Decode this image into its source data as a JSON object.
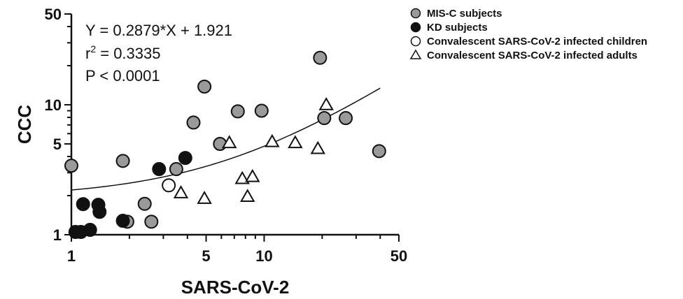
{
  "chart_data": {
    "type": "scatter",
    "xlabel": "SARS-CoV-2",
    "ylabel": "CCC",
    "x_scale": "log",
    "y_scale": "log",
    "xlim": [
      1,
      50
    ],
    "ylim": [
      1,
      50
    ],
    "x_ticks": [
      1,
      5,
      10,
      50
    ],
    "y_ticks": [
      1,
      5,
      10,
      50
    ],
    "x_tick_labels": [
      "1",
      "5",
      "10",
      "50"
    ],
    "y_tick_labels": [
      "1",
      "5",
      "10",
      "50"
    ],
    "grid": false,
    "legend_position": "top-right",
    "annotations": {
      "equation": "Y = 0.2879*X + 1.921",
      "r2_prefix": "r",
      "r2_sup": "2",
      "r2_value": " = 0.3335",
      "p_value": "P < 0.0001"
    },
    "fit": {
      "slope": 0.2879,
      "intercept": 1.921,
      "x_range": [
        1,
        40
      ]
    },
    "series": [
      {
        "name": "MIS-C subjects",
        "marker": "circle",
        "fill": "#9a9a9a",
        "points": [
          {
            "x": 1.0,
            "y": 3.4
          },
          {
            "x": 1.85,
            "y": 3.7
          },
          {
            "x": 1.95,
            "y": 1.26
          },
          {
            "x": 2.4,
            "y": 1.73
          },
          {
            "x": 2.6,
            "y": 1.26
          },
          {
            "x": 3.5,
            "y": 3.2
          },
          {
            "x": 4.3,
            "y": 7.3
          },
          {
            "x": 4.9,
            "y": 13.8
          },
          {
            "x": 5.9,
            "y": 5.0
          },
          {
            "x": 7.3,
            "y": 8.9
          },
          {
            "x": 9.7,
            "y": 9.0
          },
          {
            "x": 19.5,
            "y": 23.0
          },
          {
            "x": 20.5,
            "y": 7.9
          },
          {
            "x": 26.5,
            "y": 7.9
          },
          {
            "x": 39.5,
            "y": 4.4
          }
        ]
      },
      {
        "name": "KD subjects",
        "marker": "circle",
        "fill": "#111111",
        "points": [
          {
            "x": 1.05,
            "y": 1.05
          },
          {
            "x": 1.12,
            "y": 1.05
          },
          {
            "x": 1.15,
            "y": 1.72
          },
          {
            "x": 1.25,
            "y": 1.09
          },
          {
            "x": 1.38,
            "y": 1.7
          },
          {
            "x": 1.4,
            "y": 1.5
          },
          {
            "x": 1.85,
            "y": 1.28
          },
          {
            "x": 2.85,
            "y": 3.2
          },
          {
            "x": 3.9,
            "y": 3.9
          }
        ]
      },
      {
        "name": "Convalescent SARS-CoV-2 infected children",
        "marker": "circle-open",
        "fill": "#ffffff",
        "points": [
          {
            "x": 3.2,
            "y": 2.4
          }
        ]
      },
      {
        "name": "Convalescent SARS-CoV-2 infected adults",
        "marker": "triangle-open",
        "fill": "#ffffff",
        "points": [
          {
            "x": 3.7,
            "y": 2.1
          },
          {
            "x": 4.9,
            "y": 1.9
          },
          {
            "x": 6.6,
            "y": 5.1
          },
          {
            "x": 7.7,
            "y": 2.7
          },
          {
            "x": 8.2,
            "y": 1.97
          },
          {
            "x": 8.7,
            "y": 2.8
          },
          {
            "x": 11.0,
            "y": 5.2
          },
          {
            "x": 14.5,
            "y": 5.1
          },
          {
            "x": 19.0,
            "y": 4.6
          },
          {
            "x": 21.0,
            "y": 10.0
          }
        ]
      }
    ]
  }
}
